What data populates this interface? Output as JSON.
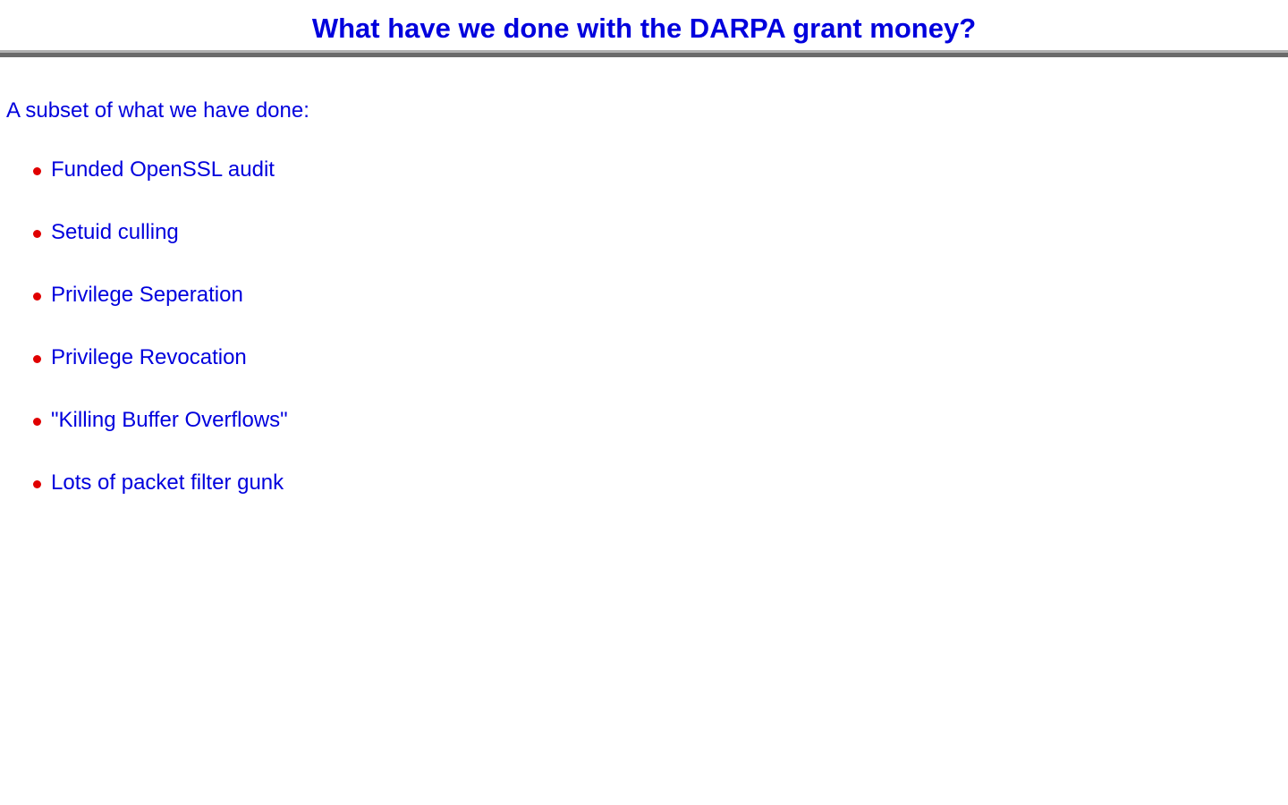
{
  "title": "What have we done with the DARPA grant money?",
  "intro": "A subset of what we have done:",
  "items": [
    "Funded OpenSSL audit",
    "Setuid culling",
    "Privilege Seperation",
    "Privilege Revocation",
    "\"Killing Buffer Overflows\"",
    "Lots of packet filter gunk"
  ],
  "colors": {
    "text": "#0000dd",
    "bullet": "#e00000",
    "rule": "#6a6a6a"
  }
}
